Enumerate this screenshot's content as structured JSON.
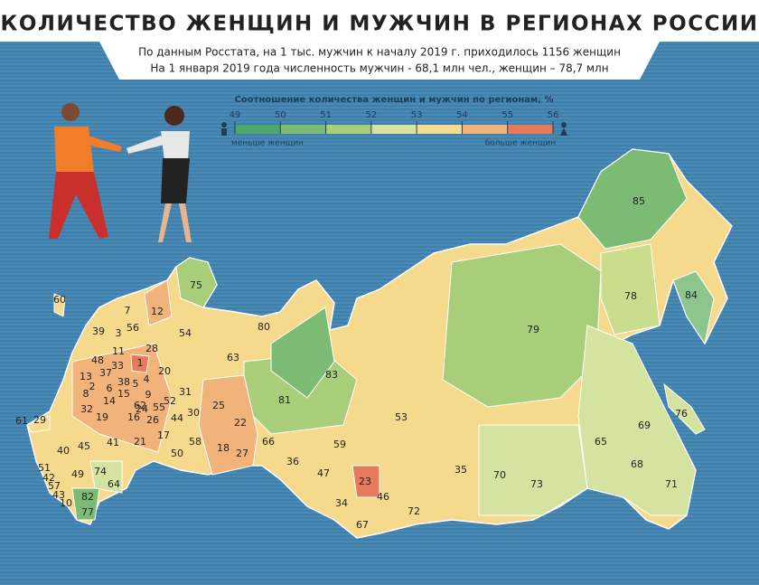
{
  "title": "КОЛИЧЕСТВО ЖЕНЩИН И МУЖЧИН В РЕГИОНАХ РОССИИ",
  "subtitle_lines": [
    "По данным Росстата, на 1 тыс. мужчин к началу 2019 г. приходилось 1156 женщин",
    "На 1 января 2019 года численность мужчин - 68,1 млн чел., женщин – 78,7 млн"
  ],
  "legend": {
    "title": "Соотношение количества женщин и мужчин по регионам, %",
    "ticks": [
      49,
      50,
      51,
      52,
      53,
      54,
      55,
      56
    ],
    "colors": [
      "#4fa66b",
      "#7cbb73",
      "#a8ce7a",
      "#d4e3a0",
      "#f5dc94",
      "#f2b37a",
      "#e57a5c"
    ],
    "low_label": "меньше женщин",
    "high_label": "больше женщин"
  },
  "regions": [
    "85",
    "84",
    "78",
    "79",
    "76",
    "69",
    "65",
    "68",
    "71",
    "70",
    "73",
    "72",
    "35",
    "53",
    "59",
    "47",
    "23",
    "46",
    "34",
    "67",
    "36",
    "66",
    "81",
    "83",
    "80",
    "75",
    "63",
    "54",
    "12",
    "7",
    "56",
    "39",
    "3",
    "11",
    "28",
    "48",
    "33",
    "1",
    "4",
    "20",
    "13",
    "37",
    "38",
    "5",
    "2",
    "6",
    "8",
    "14",
    "15",
    "9",
    "62",
    "52",
    "31",
    "55",
    "24",
    "30",
    "25",
    "32",
    "19",
    "16",
    "26",
    "44",
    "22",
    "10",
    "29",
    "61",
    "60",
    "17",
    "21",
    "41",
    "45",
    "58",
    "40",
    "50",
    "18",
    "27",
    "51",
    "42",
    "57",
    "43",
    "49",
    "74",
    "64",
    "82",
    "77"
  ]
}
